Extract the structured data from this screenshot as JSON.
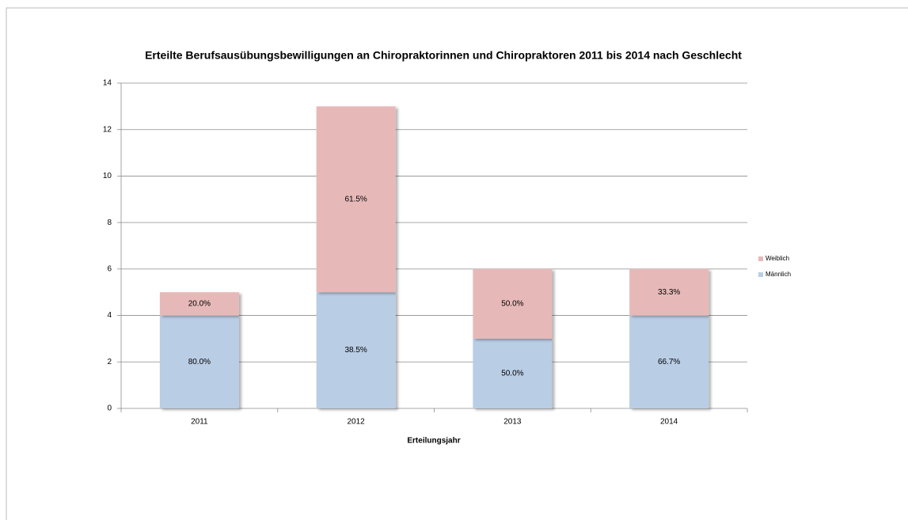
{
  "chart_data": {
    "type": "stacked_bar",
    "title": "Erteilte Berufsausübungsbewilligungen an Chiropraktorinnen und Chiropraktoren 2011 bis 2014 nach Geschlecht",
    "x_label": "Erteilungsjahr",
    "categories": [
      "2011",
      "2012",
      "2013",
      "2014"
    ],
    "series": [
      {
        "name": "Männlich",
        "color": "#b9cde5",
        "values": [
          4,
          5,
          3,
          4
        ],
        "shares": [
          80.0,
          38.5,
          50.0,
          66.7
        ],
        "share_labels": [
          "80.0%",
          "38.5%",
          "50.0%",
          "66.7%"
        ]
      },
      {
        "name": "Weiblich",
        "color": "#e6b9b8",
        "values": [
          1,
          8,
          3,
          2
        ],
        "shares": [
          20.0,
          61.5,
          50.0,
          33.3
        ],
        "share_labels": [
          "20.0%",
          "61.5%",
          "50.0%",
          "33.3%"
        ]
      }
    ],
    "ylim": [
      0,
      14
    ],
    "yticks": [
      0,
      2,
      4,
      6,
      8,
      10,
      12,
      14
    ],
    "grid": true,
    "legend": "right"
  }
}
